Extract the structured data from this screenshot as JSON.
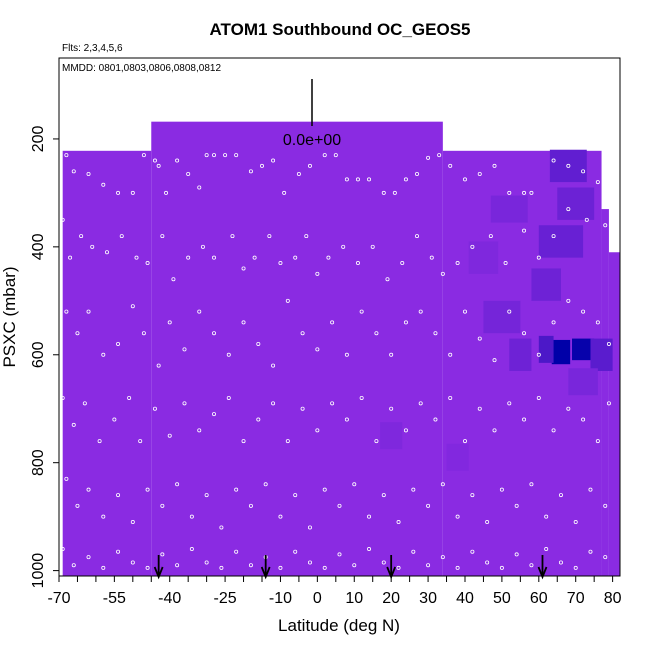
{
  "chart_data": {
    "type": "heatmap",
    "title": "ATOM1 Southbound OC_GEOS5",
    "subtitle_flights": "Flts: 2,3,4,5,6",
    "subtitle_dates": "MMDD: 0801,0803,0806,0808,0812",
    "xlabel": "Latitude (deg N)",
    "ylabel": "PSXC (mbar)",
    "xlim": [
      -70,
      82
    ],
    "ylim": [
      1010,
      50
    ],
    "x_ticks": [
      -70,
      -55,
      -40,
      -25,
      -10,
      0,
      10,
      20,
      30,
      40,
      50,
      60,
      70,
      80
    ],
    "y_ticks": [
      200,
      400,
      600,
      800,
      1000
    ],
    "legend_value_label": "0.0e+00",
    "base_color": "#8a2be2",
    "dark_color": "#0000a8",
    "profile_latitudes": [
      -43,
      -14,
      20,
      61
    ],
    "coverage": {
      "columns": [
        {
          "x0": -69,
          "x1": -45,
          "p_top": 222
        },
        {
          "x0": -45,
          "x1": 34,
          "p_top": 168
        },
        {
          "x0": 34,
          "x1": 77,
          "p_top": 222
        },
        {
          "x0": 77,
          "x1": 79,
          "p_top": 330
        },
        {
          "x0": 79,
          "x1": 82,
          "p_top": 410
        }
      ],
      "p_bottom": 1010
    },
    "anomalies": [
      {
        "lat": 66,
        "p": 595,
        "w": 5,
        "dp": 45,
        "level": 1.0
      },
      {
        "lat": 72,
        "p": 590,
        "w": 6,
        "dp": 40,
        "level": 0.95
      },
      {
        "lat": 62,
        "p": 590,
        "w": 4,
        "dp": 50,
        "level": 0.45
      },
      {
        "lat": 77,
        "p": 600,
        "w": 6,
        "dp": 60,
        "level": 0.35
      },
      {
        "lat": 55,
        "p": 600,
        "w": 6,
        "dp": 60,
        "level": 0.2
      },
      {
        "lat": 68,
        "p": 250,
        "w": 10,
        "dp": 60,
        "level": 0.3
      },
      {
        "lat": 70,
        "p": 320,
        "w": 10,
        "dp": 60,
        "level": 0.22
      },
      {
        "lat": 66,
        "p": 390,
        "w": 12,
        "dp": 60,
        "level": 0.25
      },
      {
        "lat": 52,
        "p": 330,
        "w": 10,
        "dp": 50,
        "level": 0.12
      },
      {
        "lat": 50,
        "p": 530,
        "w": 10,
        "dp": 60,
        "level": 0.15
      },
      {
        "lat": 45,
        "p": 420,
        "w": 8,
        "dp": 60,
        "level": 0.08
      },
      {
        "lat": 62,
        "p": 470,
        "w": 8,
        "dp": 60,
        "level": 0.2
      },
      {
        "lat": 20,
        "p": 750,
        "w": 6,
        "dp": 50,
        "level": 0.08
      },
      {
        "lat": 38,
        "p": 790,
        "w": 6,
        "dp": 50,
        "level": 0.06
      },
      {
        "lat": 72,
        "p": 650,
        "w": 8,
        "dp": 50,
        "level": 0.12
      }
    ],
    "sample_points": [
      [
        -68,
        230
      ],
      [
        -66,
        260
      ],
      [
        -62,
        265
      ],
      [
        -58,
        285
      ],
      [
        -54,
        300
      ],
      [
        -50,
        300
      ],
      [
        -47,
        230
      ],
      [
        -44,
        240
      ],
      [
        -43,
        250
      ],
      [
        -41,
        300
      ],
      [
        -38,
        240
      ],
      [
        -35,
        265
      ],
      [
        -32,
        290
      ],
      [
        -30,
        230
      ],
      [
        -28,
        230
      ],
      [
        -25,
        230
      ],
      [
        -22,
        230
      ],
      [
        -18,
        260
      ],
      [
        -15,
        250
      ],
      [
        -12,
        240
      ],
      [
        -9,
        300
      ],
      [
        -5,
        265
      ],
      [
        -2,
        250
      ],
      [
        2,
        230
      ],
      [
        5,
        230
      ],
      [
        8,
        275
      ],
      [
        11,
        275
      ],
      [
        14,
        275
      ],
      [
        18,
        300
      ],
      [
        21,
        300
      ],
      [
        24,
        275
      ],
      [
        27,
        265
      ],
      [
        30,
        235
      ],
      [
        33,
        230
      ],
      [
        36,
        250
      ],
      [
        40,
        275
      ],
      [
        44,
        265
      ],
      [
        48,
        250
      ],
      [
        52,
        300
      ],
      [
        56,
        300
      ],
      [
        58,
        300
      ],
      [
        64,
        240
      ],
      [
        68,
        250
      ],
      [
        72,
        260
      ],
      [
        76,
        280
      ],
      [
        -69,
        350
      ],
      [
        -67,
        420
      ],
      [
        -64,
        380
      ],
      [
        -61,
        400
      ],
      [
        -57,
        410
      ],
      [
        -53,
        380
      ],
      [
        -49,
        420
      ],
      [
        -46,
        430
      ],
      [
        -42,
        380
      ],
      [
        -39,
        460
      ],
      [
        -35,
        420
      ],
      [
        -31,
        400
      ],
      [
        -28,
        420
      ],
      [
        -23,
        380
      ],
      [
        -20,
        440
      ],
      [
        -17,
        420
      ],
      [
        -13,
        380
      ],
      [
        -10,
        430
      ],
      [
        -6,
        420
      ],
      [
        -3,
        380
      ],
      [
        0,
        450
      ],
      [
        3,
        420
      ],
      [
        7,
        400
      ],
      [
        11,
        430
      ],
      [
        15,
        400
      ],
      [
        19,
        460
      ],
      [
        23,
        430
      ],
      [
        27,
        380
      ],
      [
        31,
        420
      ],
      [
        34,
        450
      ],
      [
        38,
        430
      ],
      [
        42,
        400
      ],
      [
        47,
        380
      ],
      [
        51,
        430
      ],
      [
        56,
        370
      ],
      [
        60,
        420
      ],
      [
        64,
        380
      ],
      [
        68,
        330
      ],
      [
        73,
        350
      ],
      [
        78,
        360
      ],
      [
        -68,
        520
      ],
      [
        -65,
        560
      ],
      [
        -62,
        520
      ],
      [
        -58,
        600
      ],
      [
        -54,
        580
      ],
      [
        -50,
        510
      ],
      [
        -47,
        560
      ],
      [
        -43,
        620
      ],
      [
        -40,
        540
      ],
      [
        -36,
        590
      ],
      [
        -32,
        520
      ],
      [
        -28,
        560
      ],
      [
        -24,
        600
      ],
      [
        -20,
        540
      ],
      [
        -16,
        580
      ],
      [
        -12,
        620
      ],
      [
        -8,
        500
      ],
      [
        -4,
        560
      ],
      [
        0,
        590
      ],
      [
        4,
        540
      ],
      [
        8,
        600
      ],
      [
        12,
        520
      ],
      [
        16,
        560
      ],
      [
        20,
        600
      ],
      [
        24,
        540
      ],
      [
        28,
        520
      ],
      [
        32,
        560
      ],
      [
        36,
        600
      ],
      [
        40,
        520
      ],
      [
        44,
        570
      ],
      [
        48,
        610
      ],
      [
        52,
        520
      ],
      [
        56,
        560
      ],
      [
        60,
        600
      ],
      [
        64,
        540
      ],
      [
        68,
        500
      ],
      [
        72,
        520
      ],
      [
        76,
        540
      ],
      [
        79,
        580
      ],
      [
        -69,
        680
      ],
      [
        -66,
        730
      ],
      [
        -63,
        690
      ],
      [
        -59,
        760
      ],
      [
        -55,
        720
      ],
      [
        -51,
        680
      ],
      [
        -48,
        760
      ],
      [
        -44,
        700
      ],
      [
        -40,
        750
      ],
      [
        -36,
        690
      ],
      [
        -32,
        740
      ],
      [
        -28,
        710
      ],
      [
        -24,
        680
      ],
      [
        -20,
        760
      ],
      [
        -16,
        720
      ],
      [
        -12,
        690
      ],
      [
        -8,
        760
      ],
      [
        -4,
        700
      ],
      [
        0,
        740
      ],
      [
        4,
        690
      ],
      [
        8,
        720
      ],
      [
        12,
        680
      ],
      [
        16,
        760
      ],
      [
        20,
        700
      ],
      [
        24,
        740
      ],
      [
        28,
        690
      ],
      [
        32,
        720
      ],
      [
        36,
        680
      ],
      [
        40,
        760
      ],
      [
        44,
        700
      ],
      [
        48,
        740
      ],
      [
        52,
        690
      ],
      [
        56,
        720
      ],
      [
        60,
        680
      ],
      [
        64,
        740
      ],
      [
        68,
        700
      ],
      [
        72,
        720
      ],
      [
        76,
        760
      ],
      [
        79,
        690
      ],
      [
        -68,
        830
      ],
      [
        -65,
        880
      ],
      [
        -62,
        850
      ],
      [
        -58,
        900
      ],
      [
        -54,
        860
      ],
      [
        -50,
        910
      ],
      [
        -46,
        850
      ],
      [
        -42,
        880
      ],
      [
        -38,
        840
      ],
      [
        -34,
        900
      ],
      [
        -30,
        860
      ],
      [
        -26,
        920
      ],
      [
        -22,
        850
      ],
      [
        -18,
        880
      ],
      [
        -14,
        840
      ],
      [
        -10,
        900
      ],
      [
        -6,
        860
      ],
      [
        -2,
        920
      ],
      [
        2,
        850
      ],
      [
        6,
        880
      ],
      [
        10,
        840
      ],
      [
        14,
        900
      ],
      [
        18,
        860
      ],
      [
        22,
        910
      ],
      [
        26,
        850
      ],
      [
        30,
        880
      ],
      [
        34,
        840
      ],
      [
        38,
        900
      ],
      [
        42,
        860
      ],
      [
        46,
        910
      ],
      [
        50,
        850
      ],
      [
        54,
        880
      ],
      [
        58,
        840
      ],
      [
        62,
        900
      ],
      [
        66,
        860
      ],
      [
        70,
        910
      ],
      [
        74,
        850
      ],
      [
        78,
        880
      ],
      [
        -69,
        960
      ],
      [
        -66,
        990
      ],
      [
        -62,
        975
      ],
      [
        -58,
        995
      ],
      [
        -54,
        965
      ],
      [
        -50,
        985
      ],
      [
        -46,
        995
      ],
      [
        -42,
        970
      ],
      [
        -38,
        990
      ],
      [
        -34,
        960
      ],
      [
        -30,
        985
      ],
      [
        -26,
        995
      ],
      [
        -22,
        965
      ],
      [
        -18,
        990
      ],
      [
        -14,
        975
      ],
      [
        -10,
        995
      ],
      [
        -6,
        965
      ],
      [
        -2,
        985
      ],
      [
        2,
        995
      ],
      [
        6,
        970
      ],
      [
        10,
        990
      ],
      [
        14,
        960
      ],
      [
        18,
        985
      ],
      [
        22,
        995
      ],
      [
        26,
        965
      ],
      [
        30,
        990
      ],
      [
        34,
        975
      ],
      [
        38,
        995
      ],
      [
        42,
        965
      ],
      [
        46,
        985
      ],
      [
        50,
        995
      ],
      [
        54,
        970
      ],
      [
        58,
        990
      ],
      [
        62,
        960
      ],
      [
        66,
        985
      ],
      [
        70,
        995
      ],
      [
        74,
        965
      ],
      [
        78,
        975
      ]
    ]
  }
}
